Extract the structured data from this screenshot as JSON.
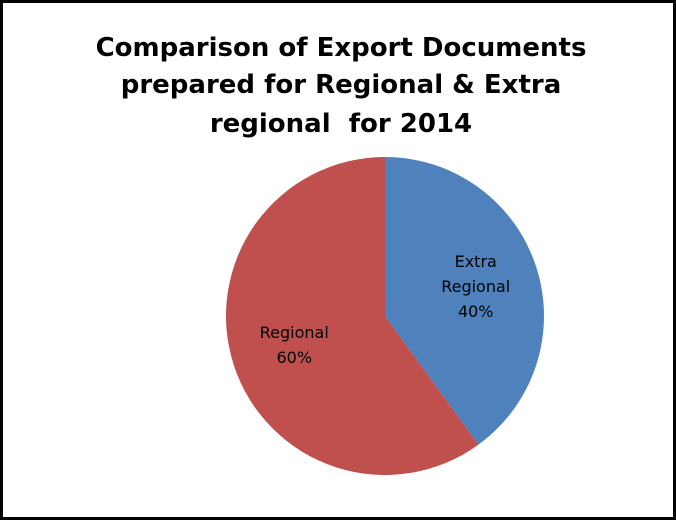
{
  "chart_data": {
    "type": "pie",
    "title": [
      "Comparison of Export Documents",
      "prepared for Regional & Extra",
      "regional  for 2014"
    ],
    "categories": [
      "Extra Regional",
      "Regional"
    ],
    "values": [
      40,
      60
    ],
    "value_labels": [
      "40%",
      "60%"
    ],
    "colors": [
      "#4f81bd",
      "#c0504d"
    ]
  }
}
